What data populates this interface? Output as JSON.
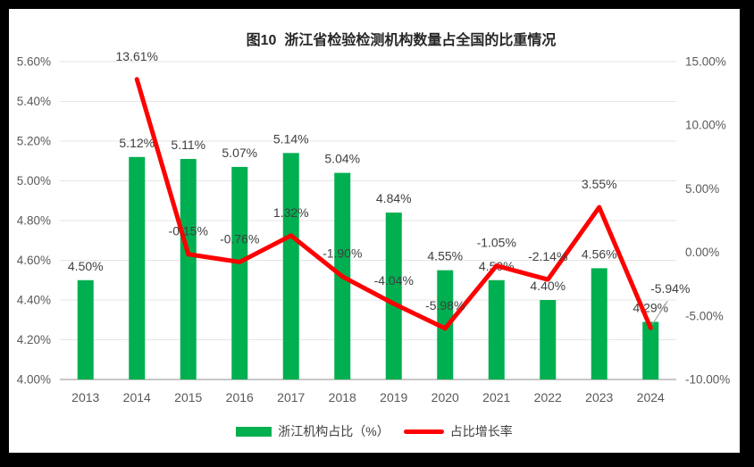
{
  "chart_data": {
    "type": "bar+line",
    "title": "图10  浙江省检验检测机构数量占全国的比重情况",
    "categories": [
      "2013",
      "2014",
      "2015",
      "2016",
      "2017",
      "2018",
      "2019",
      "2020",
      "2021",
      "2022",
      "2023",
      "2024"
    ],
    "series": [
      {
        "name": "浙江机构占比（%）",
        "type": "bar",
        "axis": "left",
        "color": "#00AF50",
        "values": [
          4.5,
          5.12,
          5.11,
          5.07,
          5.14,
          5.04,
          4.84,
          4.55,
          4.5,
          4.4,
          4.56,
          4.29
        ],
        "labels": [
          "4.50%",
          "5.12%",
          "5.11%",
          "5.07%",
          "5.14%",
          "5.04%",
          "4.84%",
          "4.55%",
          "4.50%",
          "4.40%",
          "4.56%",
          "4.29%"
        ]
      },
      {
        "name": "占比增长率",
        "type": "line",
        "axis": "right",
        "color": "#FE0000",
        "values": [
          null,
          13.61,
          -0.15,
          -0.76,
          1.32,
          -1.9,
          -4.04,
          -5.98,
          -1.05,
          -2.14,
          3.55,
          -5.94
        ],
        "labels": [
          null,
          "13.61%",
          "-0.15%",
          "-0.76%",
          "1.32%",
          "-1.90%",
          "-4.04%",
          "-5.98%",
          "-1.05%",
          "-2.14%",
          "3.55%",
          "-5.94%"
        ]
      }
    ],
    "left_axis": {
      "min": 4.0,
      "max": 5.6,
      "step": 0.2,
      "ticks": [
        "4.00%",
        "4.20%",
        "4.40%",
        "4.60%",
        "4.80%",
        "5.00%",
        "5.20%",
        "5.40%",
        "5.60%"
      ]
    },
    "right_axis": {
      "min": -10,
      "max": 15,
      "step": 5,
      "ticks": [
        "-10.00%",
        "-5.00%",
        "0.00%",
        "5.00%",
        "10.00%",
        "15.00%"
      ]
    },
    "grid": true,
    "legend_position": "bottom",
    "xlabel": "",
    "ylabel": "",
    "colors": {
      "grid": "#E5E5E5",
      "axis_line": "#BFBFBF",
      "tick_text": "#595959",
      "label_text": "#404040",
      "leader_line": "#A6A6A6",
      "background": "#FFFFFF",
      "frame": "#000000"
    }
  }
}
